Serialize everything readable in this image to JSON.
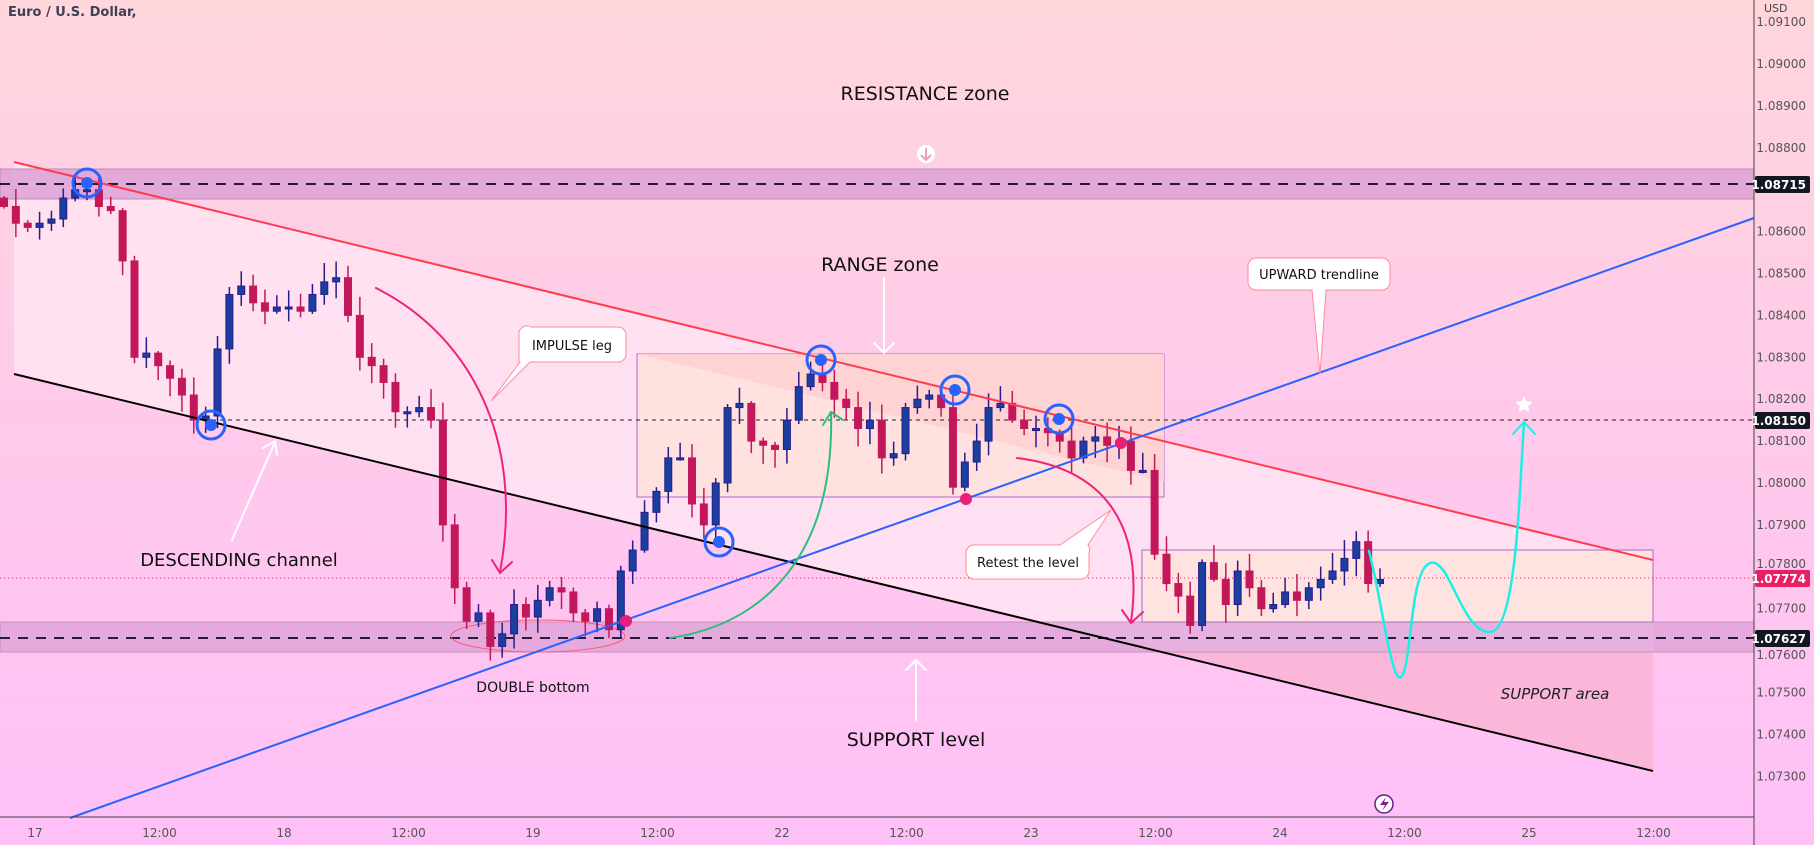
{
  "header": {
    "title": "Euro / U.S. Dollar,",
    "currency": "USD"
  },
  "colors": {
    "up": "#1b3f9e",
    "down": "#c2185b",
    "resistance_line": "#ff3b4f",
    "channel_lower": "#000000",
    "up_trend": "#2962ff",
    "projection": "#19f0e6",
    "price_tag": "#e91e63"
  },
  "annotations": {
    "resistance_zone": "RESISTANCE zone",
    "range_zone": "RANGE zone",
    "impulse_leg": "IMPULSE leg",
    "descending_channel": "DESCENDING channel",
    "double_bottom": "DOUBLE bottom",
    "support_level": "SUPPORT level",
    "retest": "Retest the level",
    "upward_trendline": "UPWARD trendline",
    "support_area": "SUPPORT area"
  },
  "chart_data": {
    "type": "candlestick",
    "title": "Euro / U.S. Dollar",
    "ylabel": "USD",
    "ylim": [
      1.0722,
      1.0915
    ],
    "interval": "1h",
    "price_ticks": [
      "1.09100",
      "1.09000",
      "1.08900",
      "1.08800",
      "1.08600",
      "1.08500",
      "1.08400",
      "1.08300",
      "1.08200",
      "1.08100",
      "1.08000",
      "1.07900",
      "1.07800",
      "1.07700",
      "1.07600",
      "1.07500",
      "1.07400",
      "1.07300"
    ],
    "time_ticks": [
      "17",
      "12:00",
      "18",
      "12:00",
      "19",
      "12:00",
      "22",
      "12:00",
      "23",
      "12:00",
      "24",
      "12:00",
      "25",
      "12:00"
    ],
    "levels": {
      "resistance": "1.08715",
      "range_mid": "1.08150",
      "last_price": "1.07774",
      "support": "1.07627"
    },
    "first_open": 1.0868,
    "closes": [
      1.0866,
      1.0862,
      1.0861,
      1.0862,
      1.0863,
      1.0868,
      1.087,
      1.087,
      1.0866,
      1.0865,
      1.0853,
      1.083,
      1.0831,
      1.0828,
      1.0825,
      1.0821,
      1.0815,
      1.0816,
      1.0832,
      1.0845,
      1.0847,
      1.0843,
      1.0841,
      1.0842,
      1.0842,
      1.0841,
      1.0845,
      1.0848,
      1.0849,
      1.084,
      1.083,
      1.0828,
      1.0824,
      1.0817,
      1.0817,
      1.0818,
      1.0815,
      1.079,
      1.0775,
      1.0767,
      1.0769,
      1.0761,
      1.0764,
      1.0771,
      1.0768,
      1.0772,
      1.0775,
      1.0774,
      1.0769,
      1.0767,
      1.077,
      1.0765,
      1.0779,
      1.0784,
      1.0793,
      1.0798,
      1.0806,
      1.0806,
      1.0795,
      1.079,
      1.08,
      1.0818,
      1.0819,
      1.081,
      1.0809,
      1.0808,
      1.0815,
      1.0823,
      1.0826,
      1.0824,
      1.082,
      1.0818,
      1.0813,
      1.0815,
      1.0806,
      1.0807,
      1.0818,
      1.082,
      1.0821,
      1.0818,
      1.0799,
      1.0805,
      1.081,
      1.0818,
      1.0819,
      1.0815,
      1.0813,
      1.0813,
      1.0812,
      1.081,
      1.0806,
      1.081,
      1.0811,
      1.0809,
      1.081,
      1.0803,
      1.0803,
      1.0783,
      1.0776,
      1.0773,
      1.0766,
      1.0781,
      1.0777,
      1.0771,
      1.0779,
      1.0775,
      1.077,
      1.0771,
      1.0774,
      1.0772,
      1.0775,
      1.0777,
      1.0779,
      1.0782,
      1.0786,
      1.0776,
      1.0777
    ]
  }
}
